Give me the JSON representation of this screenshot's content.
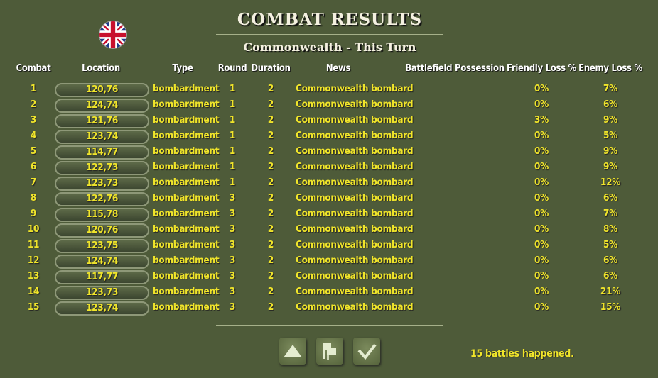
{
  "title": "COMBAT RESULTS",
  "subtitle": "Commonwealth - This Turn",
  "nation_flag": "union-jack-icon",
  "columns": [
    "Combat",
    "Location",
    "Type",
    "Round",
    "Duration",
    "News",
    "Battlefield Possession",
    "Friendly Loss %",
    "Enemy Loss %"
  ],
  "rows": [
    [
      "1",
      "120,76",
      "bombardment",
      "1",
      "2",
      "Commonwealth bombard",
      "",
      "0%",
      "7%"
    ],
    [
      "2",
      "124,74",
      "bombardment",
      "1",
      "2",
      "Commonwealth bombard",
      "",
      "0%",
      "6%"
    ],
    [
      "3",
      "121,76",
      "bombardment",
      "1",
      "2",
      "Commonwealth bombard",
      "",
      "3%",
      "9%"
    ],
    [
      "4",
      "123,74",
      "bombardment",
      "1",
      "2",
      "Commonwealth bombard",
      "",
      "0%",
      "5%"
    ],
    [
      "5",
      "114,77",
      "bombardment",
      "1",
      "2",
      "Commonwealth bombard",
      "",
      "0%",
      "9%"
    ],
    [
      "6",
      "122,73",
      "bombardment",
      "1",
      "2",
      "Commonwealth bombard",
      "",
      "0%",
      "9%"
    ],
    [
      "7",
      "123,73",
      "bombardment",
      "1",
      "2",
      "Commonwealth bombard",
      "",
      "0%",
      "12%"
    ],
    [
      "8",
      "122,76",
      "bombardment",
      "3",
      "2",
      "Commonwealth bombard",
      "",
      "0%",
      "6%"
    ],
    [
      "9",
      "115,78",
      "bombardment",
      "3",
      "2",
      "Commonwealth bombard",
      "",
      "0%",
      "7%"
    ],
    [
      "10",
      "120,76",
      "bombardment",
      "3",
      "2",
      "Commonwealth bombard",
      "",
      "0%",
      "8%"
    ],
    [
      "11",
      "123,75",
      "bombardment",
      "3",
      "2",
      "Commonwealth bombard",
      "",
      "0%",
      "5%"
    ],
    [
      "12",
      "124,74",
      "bombardment",
      "3",
      "2",
      "Commonwealth bombard",
      "",
      "0%",
      "6%"
    ],
    [
      "13",
      "117,77",
      "bombardment",
      "3",
      "2",
      "Commonwealth bombard",
      "",
      "0%",
      "6%"
    ],
    [
      "14",
      "123,73",
      "bombardment",
      "3",
      "2",
      "Commonwealth bombard",
      "",
      "0%",
      "21%"
    ],
    [
      "15",
      "123,74",
      "bombardment",
      "3",
      "2",
      "Commonwealth bombard",
      "",
      "0%",
      "15%"
    ]
  ],
  "buttons": [
    {
      "icon": "triangle-up-icon"
    },
    {
      "icon": "flags-icon"
    },
    {
      "icon": "checkmark-icon"
    }
  ],
  "status": "15 battles happened.",
  "colors": {
    "background": "#4e5b39",
    "text": "#f0e52a",
    "header": "#ffffff"
  }
}
